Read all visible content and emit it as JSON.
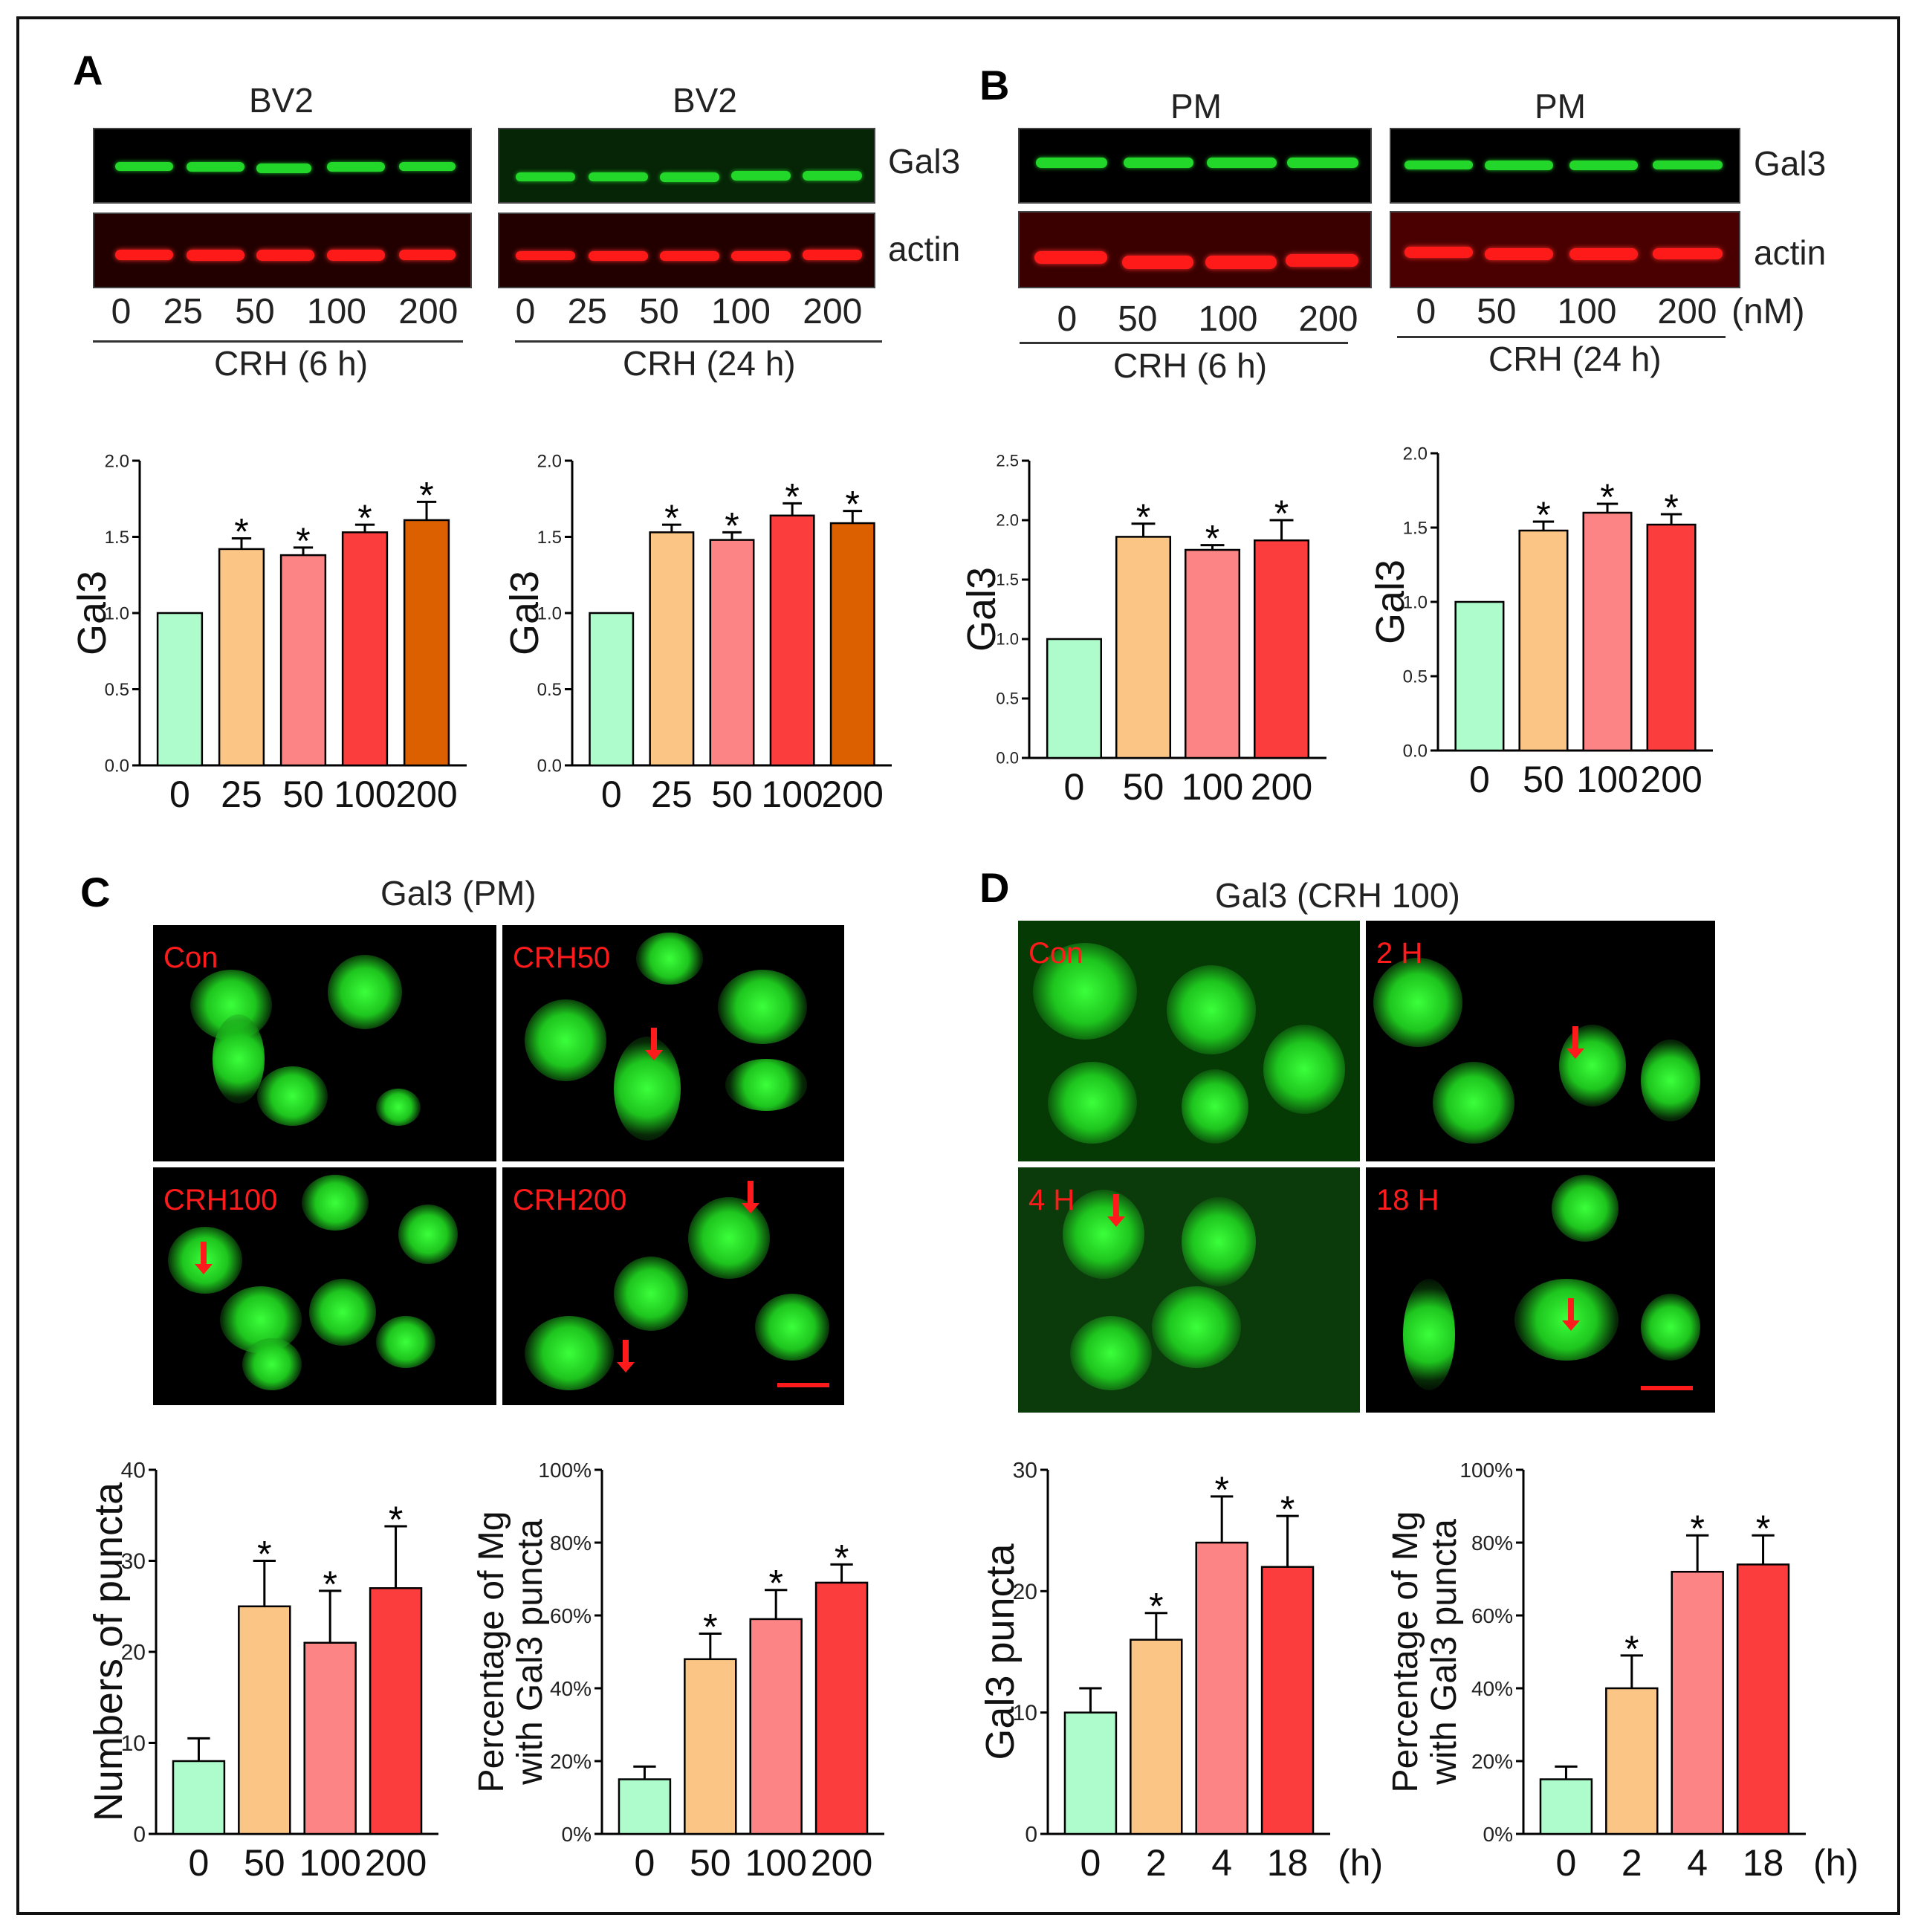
{
  "panels": {
    "A": {
      "letter": "A",
      "blot1": {
        "title": "BV2",
        "lanes": [
          "0",
          "25",
          "50",
          "100",
          "200"
        ],
        "treatment": "CRH (6 h)"
      },
      "blot2": {
        "title": "BV2",
        "lanes": [
          "0",
          "25",
          "50",
          "100",
          "200"
        ],
        "treatment": "CRH (24 h)"
      },
      "protein_top": "Gal3",
      "protein_bottom": "actin"
    },
    "B": {
      "letter": "B",
      "blot1": {
        "title": "PM",
        "lanes": [
          "0",
          "50",
          "100",
          "200"
        ],
        "treatment": "CRH (6 h)"
      },
      "blot2": {
        "title": "PM",
        "lanes": [
          "0",
          "50",
          "100",
          "200"
        ],
        "treatment": "CRH (24 h)",
        "unit": "(nM)"
      },
      "protein_top": "Gal3",
      "protein_bottom": "actin"
    },
    "C": {
      "letter": "C",
      "title": "Gal3 (PM)",
      "images": [
        "Con",
        "CRH50",
        "CRH100",
        "CRH200"
      ]
    },
    "D": {
      "letter": "D",
      "title": "Gal3 (CRH 100)",
      "images": [
        "Con",
        "2 H",
        "4 H",
        "18 H"
      ]
    }
  },
  "colors": {
    "c0": "#aefccb",
    "c1": "#fbc585",
    "c2": "#fc8485",
    "c3": "#fb3d3d",
    "c4": "#dc6000"
  },
  "chart_data": [
    {
      "id": "A1",
      "type": "bar",
      "categories": [
        "0",
        "25",
        "50",
        "100",
        "200"
      ],
      "values": [
        1.0,
        1.42,
        1.38,
        1.53,
        1.61
      ],
      "errors": [
        0,
        0.07,
        0.05,
        0.05,
        0.12
      ],
      "significant": [
        false,
        true,
        true,
        true,
        true
      ],
      "ylabel": "Gal3",
      "ylim": [
        0,
        2.0
      ],
      "yticks": [
        "0.0",
        "0.5",
        "1.0",
        "1.5",
        "2.0"
      ],
      "colors": [
        "c0",
        "c1",
        "c2",
        "c3",
        "c4"
      ],
      "x_unit": ""
    },
    {
      "id": "A2",
      "type": "bar",
      "categories": [
        "0",
        "25",
        "50",
        "100",
        "200"
      ],
      "values": [
        1.0,
        1.53,
        1.48,
        1.64,
        1.59
      ],
      "errors": [
        0,
        0.05,
        0.05,
        0.08,
        0.08
      ],
      "significant": [
        false,
        true,
        true,
        true,
        true
      ],
      "ylabel": "Gal3",
      "ylim": [
        0,
        2.0
      ],
      "yticks": [
        "0.0",
        "0.5",
        "1.0",
        "1.5",
        "2.0"
      ],
      "colors": [
        "c0",
        "c1",
        "c2",
        "c3",
        "c4"
      ],
      "x_unit": ""
    },
    {
      "id": "B1",
      "type": "bar",
      "categories": [
        "0",
        "50",
        "100",
        "200"
      ],
      "values": [
        1.0,
        1.86,
        1.75,
        1.83
      ],
      "errors": [
        0,
        0.11,
        0.04,
        0.17
      ],
      "significant": [
        false,
        true,
        true,
        true
      ],
      "ylabel": "Gal3",
      "ylim": [
        0,
        2.5
      ],
      "yticks": [
        "0.0",
        "0.5",
        "1.0",
        "1.5",
        "2.0",
        "2.5"
      ],
      "colors": [
        "c0",
        "c1",
        "c2",
        "c3"
      ],
      "x_unit": ""
    },
    {
      "id": "B2",
      "type": "bar",
      "categories": [
        "0",
        "50",
        "100",
        "200"
      ],
      "values": [
        1.0,
        1.48,
        1.6,
        1.52
      ],
      "errors": [
        0,
        0.06,
        0.06,
        0.07
      ],
      "significant": [
        false,
        true,
        true,
        true
      ],
      "ylabel": "Gal3",
      "ylim": [
        0,
        2.0
      ],
      "yticks": [
        "0.0",
        "0.5",
        "1.0",
        "1.5",
        "2.0"
      ],
      "colors": [
        "c0",
        "c1",
        "c2",
        "c3"
      ],
      "x_unit": ""
    },
    {
      "id": "C1",
      "type": "bar",
      "categories": [
        "0",
        "50",
        "100",
        "200"
      ],
      "values": [
        8,
        25,
        21,
        27
      ],
      "errors": [
        2.5,
        5,
        5.7,
        6.8
      ],
      "significant": [
        false,
        true,
        true,
        true
      ],
      "ylabel": "Numbers of puncta",
      "ylim": [
        0,
        40
      ],
      "yticks": [
        "0",
        "10",
        "20",
        "30",
        "40"
      ],
      "colors": [
        "c0",
        "c1",
        "c2",
        "c3"
      ],
      "x_unit": ""
    },
    {
      "id": "C2",
      "type": "bar",
      "categories": [
        "0",
        "50",
        "100",
        "200"
      ],
      "values": [
        15,
        48,
        59,
        69
      ],
      "errors": [
        3.5,
        7,
        8,
        5
      ],
      "significant": [
        false,
        true,
        true,
        true
      ],
      "ylabel": "Percentage of Mg with Gal3 puncta",
      "ylabel_lines": [
        "Percentage of Mg",
        "with Gal3 puncta"
      ],
      "ylim": [
        0,
        100
      ],
      "yticks": [
        "0%",
        "20%",
        "40%",
        "60%",
        "80%",
        "100%"
      ],
      "colors": [
        "c0",
        "c1",
        "c2",
        "c3"
      ],
      "x_unit": ""
    },
    {
      "id": "D1",
      "type": "bar",
      "categories": [
        "0",
        "2",
        "4",
        "18"
      ],
      "values": [
        10,
        16,
        24,
        22
      ],
      "errors": [
        2,
        2.2,
        3.8,
        4.2
      ],
      "significant": [
        false,
        true,
        true,
        true
      ],
      "ylabel": "Gal3 puncta",
      "ylim": [
        0,
        30
      ],
      "yticks": [
        "0",
        "10",
        "20",
        "30"
      ],
      "colors": [
        "c0",
        "c1",
        "c2",
        "c3"
      ],
      "x_unit": "(h)"
    },
    {
      "id": "D2",
      "type": "bar",
      "categories": [
        "0",
        "2",
        "4",
        "18"
      ],
      "values": [
        15,
        40,
        72,
        74
      ],
      "errors": [
        3.5,
        9,
        10,
        8
      ],
      "significant": [
        false,
        true,
        true,
        true
      ],
      "ylabel": "Percentage of Mg with Gal3 puncta",
      "ylabel_lines": [
        "Percentage of Mg",
        "with Gal3 puncta"
      ],
      "ylim": [
        0,
        100
      ],
      "yticks": [
        "0%",
        "20%",
        "40%",
        "60%",
        "80%",
        "100%"
      ],
      "colors": [
        "c0",
        "c1",
        "c2",
        "c3"
      ],
      "x_unit": "(h)"
    }
  ]
}
